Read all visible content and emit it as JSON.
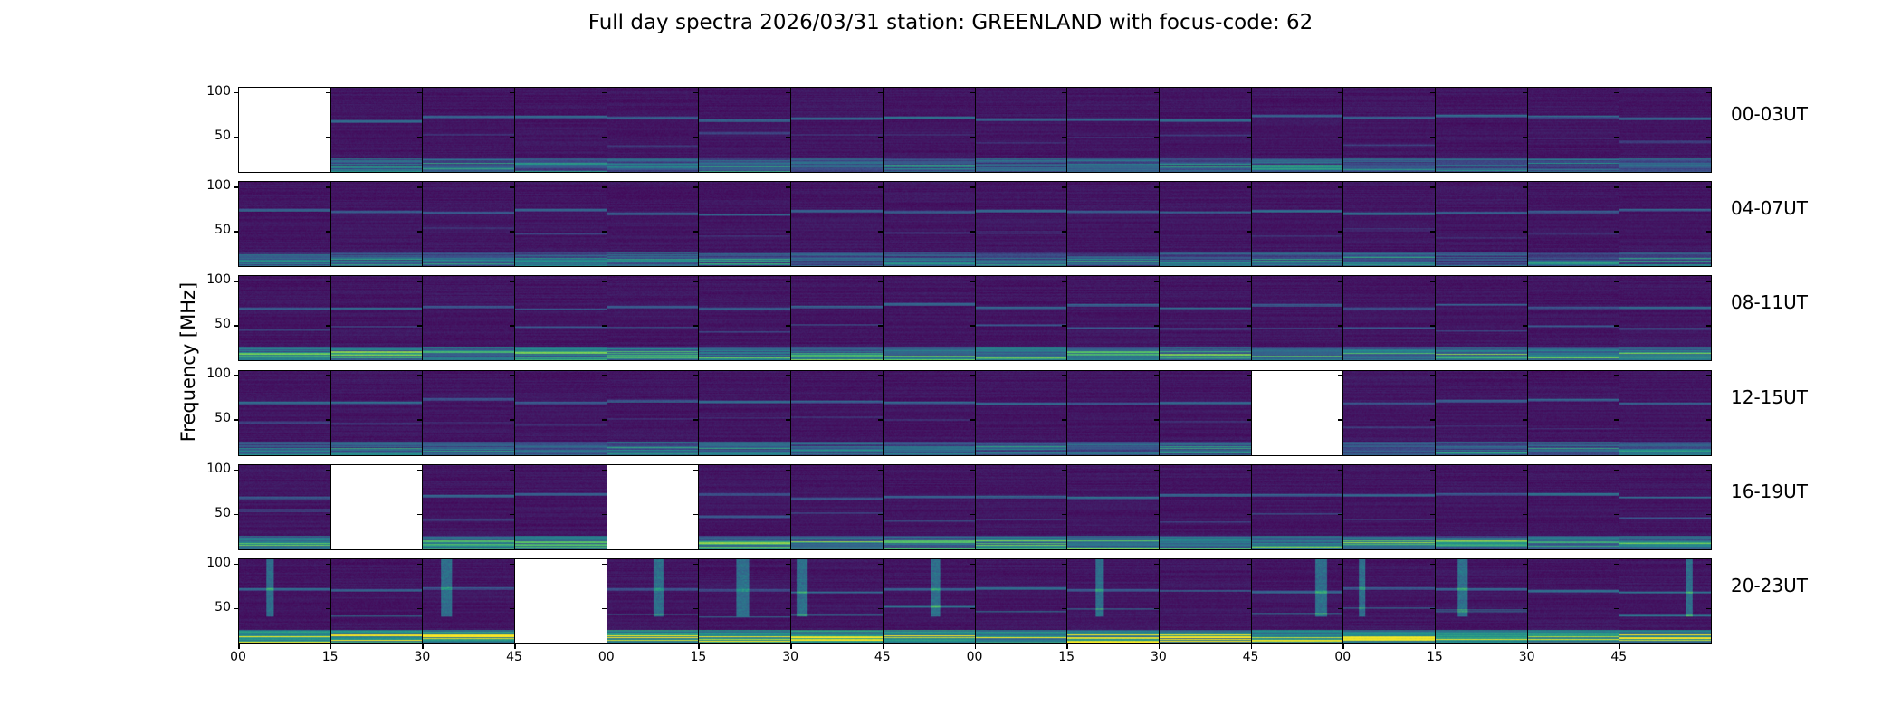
{
  "chart_data": {
    "type": "heatmap",
    "title": "Full day spectra 2026/03/31 station: GREENLAND with focus-code: 62",
    "ylabel": "Frequency [MHz]",
    "xlabel": "",
    "ylim": [
      9,
      106
    ],
    "yticks": [
      "100",
      "50"
    ],
    "ytick_values": [
      100,
      50
    ],
    "xticks": [
      "00",
      "15",
      "30",
      "45",
      "00",
      "15",
      "30",
      "45",
      "00",
      "15",
      "30",
      "45",
      "00",
      "15",
      "30",
      "45"
    ],
    "colormap": "viridis",
    "panels_per_row": 16,
    "rows": [
      {
        "label": "00-03UT",
        "empty_panels": [
          0
        ],
        "activity": "low"
      },
      {
        "label": "04-07UT",
        "empty_panels": [],
        "activity": "low"
      },
      {
        "label": "08-11UT",
        "empty_panels": [],
        "activity": "medium"
      },
      {
        "label": "12-15UT",
        "empty_panels": [
          11
        ],
        "activity": "low"
      },
      {
        "label": "16-19UT",
        "empty_panels": [
          1,
          4
        ],
        "activity": "medium"
      },
      {
        "label": "20-23UT",
        "empty_panels": [
          3
        ],
        "activity": "high"
      }
    ]
  }
}
